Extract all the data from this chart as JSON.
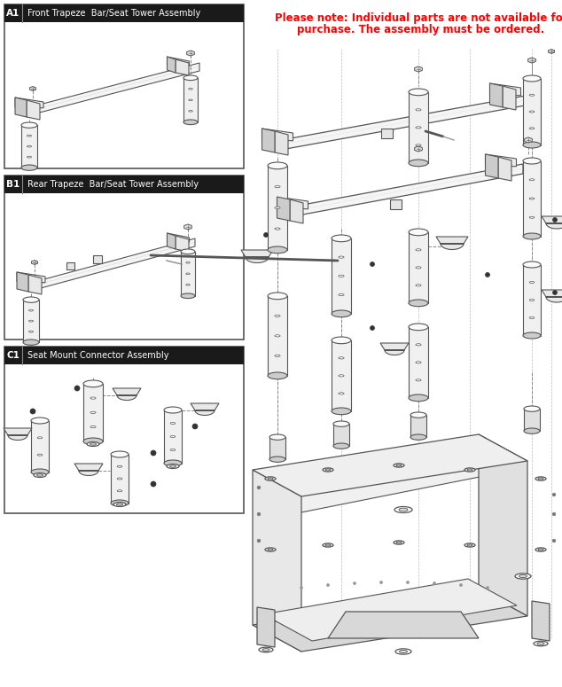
{
  "notice_line1": "Please note: Individual parts are not available for",
  "notice_line2": "purchase. The assembly must be ordered.",
  "notice_color": "#ff0000",
  "bg_color": "#ffffff",
  "box_bg": "#1a1a1a",
  "box_text_color": "#ffffff",
  "border_color": "#555555",
  "label_a1": "A1",
  "title_a1": "Front Trapeze  Bar/Seat Tower Assembly",
  "label_b1": "B1",
  "title_b1": "Rear Trapeze  Bar/Seat Tower Assembly",
  "label_c1": "C1",
  "title_c1": "Seat Mount Connector Assembly",
  "line_color": "#555555",
  "dash_color": "#888888",
  "part_fill": "#f0f0f0",
  "part_stroke": "#555555",
  "part_dark": "#cccccc"
}
